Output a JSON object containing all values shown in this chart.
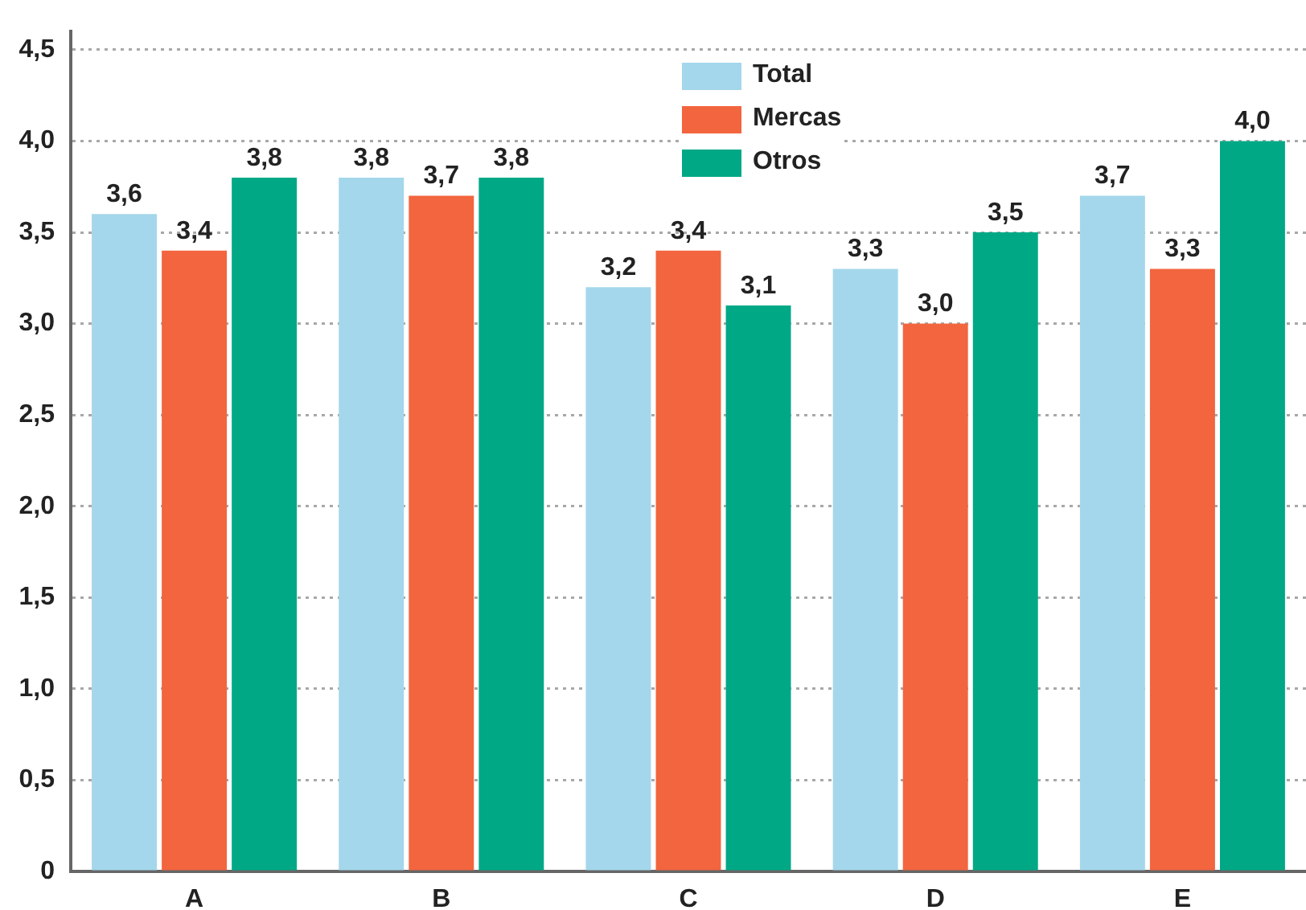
{
  "chart_data": {
    "type": "bar",
    "categories": [
      "A",
      "B",
      "C",
      "D",
      "E"
    ],
    "series": [
      {
        "name": "Total",
        "color": "#a4d7eb",
        "values": [
          3.6,
          3.8,
          3.2,
          3.3,
          3.7
        ],
        "value_labels": [
          "3,6",
          "3,8",
          "3,2",
          "3,3",
          "3,7"
        ]
      },
      {
        "name": "Mercas",
        "color": "#f2653e",
        "values": [
          3.4,
          3.7,
          3.4,
          3.0,
          3.3
        ],
        "value_labels": [
          "3,4",
          "3,7",
          "3,4",
          "3,0",
          "3,3"
        ]
      },
      {
        "name": "Otros",
        "color": "#00a886",
        "values": [
          3.8,
          3.8,
          3.1,
          3.5,
          4.0
        ],
        "value_labels": [
          "3,8",
          "3,8",
          "3,1",
          "3,5",
          "4,0"
        ]
      }
    ],
    "ylim": [
      0,
      4.6
    ],
    "yticks": [
      0,
      {
        "value": 0.5,
        "label": "0,5"
      },
      {
        "value": 1,
        "label": "1,0"
      },
      {
        "value": 1.5,
        "label": "1,5"
      },
      {
        "value": 2,
        "label": "2,0"
      },
      {
        "value": 2.5,
        "label": "2,5"
      },
      {
        "value": 3,
        "label": "3,0"
      },
      {
        "value": 3.5,
        "label": "3,5"
      },
      {
        "value": 4,
        "label": "4,0"
      },
      {
        "value": 4.5,
        "label": "4,5"
      }
    ],
    "grid": "y",
    "legend": "top"
  }
}
